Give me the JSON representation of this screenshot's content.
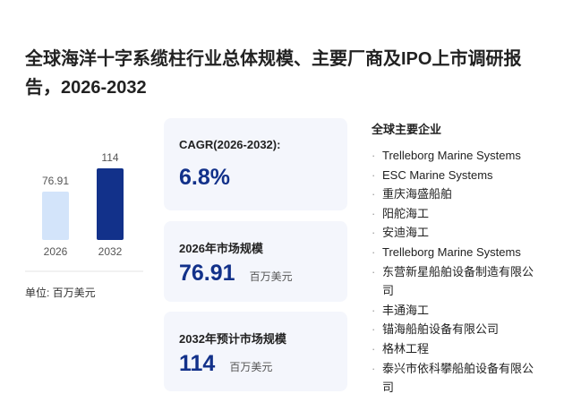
{
  "header": {
    "title": "全球海洋十字系缆柱行业总体规模、主要厂商及IPO上市调研报告，2026-2032"
  },
  "chart_data": {
    "type": "bar",
    "categories": [
      "2026",
      "2032"
    ],
    "values": [
      76.91,
      114
    ],
    "colors": [
      "#d3e4fa",
      "#12318a"
    ]
  },
  "unit_note": "单位: 百万美元",
  "cards": [
    {
      "label": "CAGR(2026-2032):",
      "value": "6.8%"
    },
    {
      "label": "2026年市场规模",
      "value": "76.91",
      "unit": "百万美元"
    },
    {
      "label": "2032年预计市场规模",
      "value": "114",
      "unit": "百万美元"
    }
  ],
  "companies": {
    "title": "全球主要企业",
    "items": [
      "Trelleborg Marine Systems",
      "ESC Marine Systems",
      "重庆海盛船舶",
      "阳舵海工",
      "安迪海工",
      "Trelleborg Marine Systems",
      "东营新星船舶设备制造有限公司",
      "丰通海工",
      "锚海船舶设备有限公司",
      "格林工程",
      "泰兴市依科攀船舶设备有限公司"
    ]
  }
}
